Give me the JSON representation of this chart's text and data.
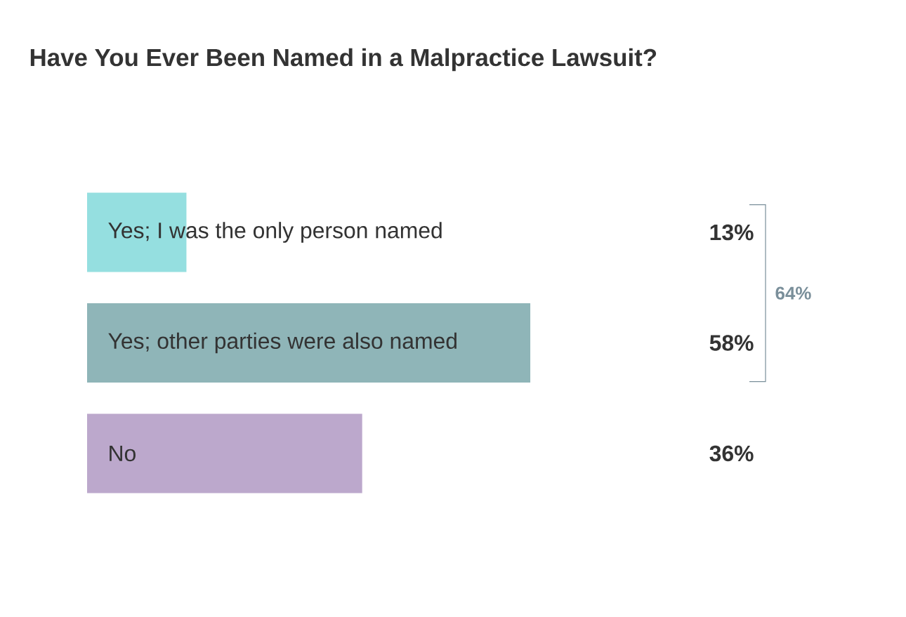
{
  "chart_data": {
    "type": "bar",
    "orientation": "horizontal",
    "title": "Have You Ever Been Named in a Malpractice Lawsuit?",
    "categories": [
      "Yes; I was the only person named",
      "Yes; other parties were also named",
      "No"
    ],
    "values": [
      13,
      58,
      36
    ],
    "colors": [
      "#95dfe0",
      "#8fb5b8",
      "#bca8cc"
    ],
    "data_labels": true,
    "value_labels": [
      "13%",
      "58%",
      "36%"
    ],
    "annotations": [
      "64%"
    ]
  }
}
